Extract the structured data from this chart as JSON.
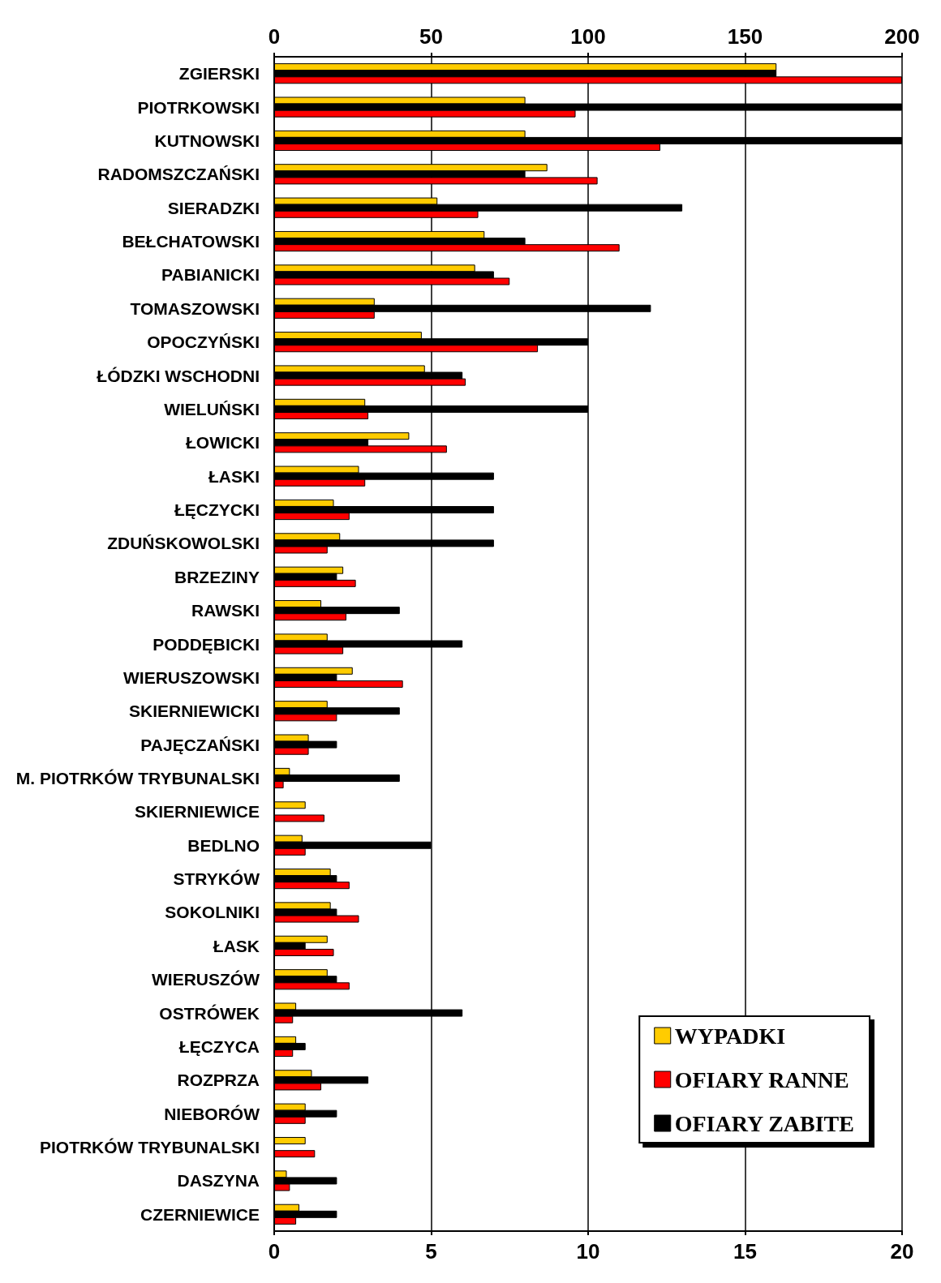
{
  "chart_data": {
    "type": "bar",
    "orientation": "horizontal",
    "categories": [
      "ZGIERSKI",
      "PIOTRKOWSKI",
      "KUTNOWSKI",
      "RADOMSZCZAŃSKI",
      "SIERADZKI",
      "BEŁCHATOWSKI",
      "PABIANICKI",
      "TOMASZOWSKI",
      "OPOCZYŃSKI",
      "ŁÓDZKI WSCHODNI",
      "WIELUŃSKI",
      "ŁOWICKI",
      "ŁASKI",
      "ŁĘCZYCKI",
      "ZDUŃSKOWOLSKI",
      "BRZEZINY",
      "RAWSKI",
      "PODDĘBICKI",
      "WIERUSZOWSKI",
      "SKIERNIEWICKI",
      "PAJĘCZAŃSKI",
      "M. PIOTRKÓW TRYBUNALSKI",
      "SKIERNIEWICE",
      "BEDLNO",
      "STRYKÓW",
      "SOKOLNIKI",
      "ŁASK",
      "WIERUSZÓW",
      "OSTRÓWEK",
      "ŁĘCZYCA",
      "ROZPRZA",
      "NIEBORÓW",
      "PIOTRKÓW TRYBUNALSKI",
      "DASZYNA",
      "CZERNIEWICE"
    ],
    "series": [
      {
        "name": "WYPADKI",
        "color": "#ffcc00",
        "axis": "x2",
        "values": [
          160,
          80,
          80,
          87,
          52,
          67,
          64,
          32,
          47,
          48,
          29,
          43,
          27,
          19,
          21,
          22,
          15,
          17,
          25,
          17,
          11,
          5,
          10,
          9,
          18,
          18,
          17,
          17,
          7,
          7,
          12,
          10,
          10,
          4,
          8
        ]
      },
      {
        "name": "OFIARY RANNE",
        "color": "#ff0000",
        "axis": "x2",
        "values": [
          200,
          96,
          123,
          103,
          65,
          110,
          75,
          32,
          84,
          61,
          30,
          55,
          29,
          24,
          17,
          26,
          23,
          22,
          41,
          20,
          11,
          3,
          16,
          10,
          24,
          27,
          19,
          24,
          6,
          6,
          15,
          10,
          13,
          5,
          7
        ]
      },
      {
        "name": "OFIARY ZABITE",
        "color": "#000000",
        "values": [
          16,
          20,
          20,
          8,
          13,
          8,
          7,
          12,
          10,
          6,
          10,
          3,
          7,
          7,
          7,
          2,
          4,
          6,
          2,
          4,
          2,
          4,
          null,
          5,
          2,
          2,
          1,
          2,
          6,
          1,
          3,
          2,
          null,
          2,
          2
        ]
      }
    ],
    "xlim": [
      0,
      20
    ],
    "xticks": [
      0,
      5,
      10,
      15,
      20
    ],
    "x2lim": [
      0,
      200
    ],
    "x2ticks": [
      0,
      50,
      100,
      150,
      200
    ],
    "grid": "x",
    "legend": "bottom right"
  }
}
